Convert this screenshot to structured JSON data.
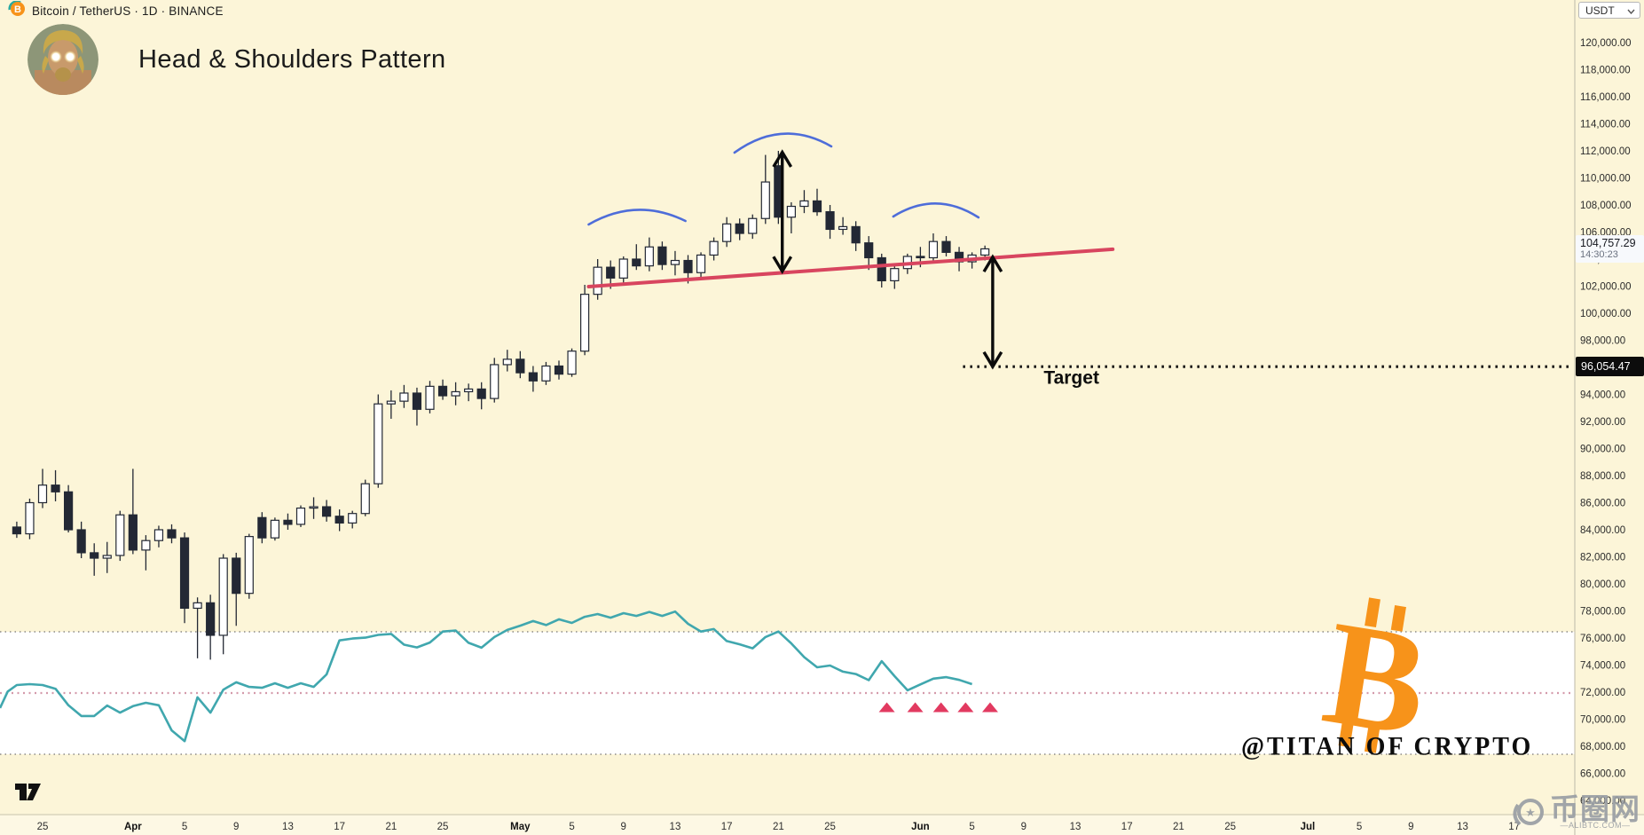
{
  "header": {
    "symbol_text": "Bitcoin / TetherUS · 1D · BINANCE",
    "title": "Head & Shoulders Pattern"
  },
  "price_scale": {
    "currency": "USDT"
  },
  "badges": {
    "last_price": "104,757.29",
    "last_time": "14:30:23",
    "target_price": "96,054.47"
  },
  "watermark": {
    "handle": "@TITAN OF CRYPTO"
  },
  "site_watermark": {
    "name": "币圈网",
    "domain": "—ALIBTC.COM—"
  },
  "colors": {
    "background": "#FCF5D8",
    "candle_down": "#232834",
    "candle_up_fill": "#FFFFFF",
    "neckline": "#D8455F",
    "arc_blue": "#4565D9",
    "rsi_teal": "#40A7AE",
    "rsi_mid_dotted": "#D49AAB",
    "rsi_band_dotted": "#6f6f6f",
    "triangle": "#E23A60",
    "bitcoin_orange": "#F7931A",
    "badge_black": "#0C0C0C",
    "axis_text": "#2b2b2b"
  },
  "chart_data": {
    "type": "candlestick",
    "title": "Bitcoin / TetherUS 1D BINANCE — Head & Shoulders Pattern",
    "start_date": "Mar 23",
    "last_price": 104757.29,
    "target_price": 96054.47,
    "price_axis": {
      "min": 64000,
      "max": 120000,
      "step": 2000,
      "labels": [
        [
          120000,
          "120,000.00"
        ],
        [
          118000,
          "118,000.00"
        ],
        [
          116000,
          "116,000.00"
        ],
        [
          114000,
          "114,000.00"
        ],
        [
          112000,
          "112,000.00"
        ],
        [
          110000,
          "110,000.00"
        ],
        [
          108000,
          "108,000.00"
        ],
        [
          106000,
          "106,000.00"
        ],
        [
          104000,
          "104,000.00"
        ],
        [
          102000,
          "102,000.00"
        ],
        [
          100000,
          "100,000.00"
        ],
        [
          98000,
          "98,000.00"
        ],
        [
          96000,
          "96,000.00"
        ],
        [
          94000,
          "94,000.00"
        ],
        [
          92000,
          "92,000.00"
        ],
        [
          90000,
          "90,000.00"
        ],
        [
          88000,
          "88,000.00"
        ],
        [
          86000,
          "86,000.00"
        ],
        [
          84000,
          "84,000.00"
        ],
        [
          82000,
          "82,000.00"
        ],
        [
          80000,
          "80,000.00"
        ],
        [
          78000,
          "78,000.00"
        ],
        [
          76000,
          "76,000.00"
        ],
        [
          74000,
          "74,000.00"
        ],
        [
          72000,
          "72,000.00"
        ],
        [
          70000,
          "70,000.00"
        ],
        [
          68000,
          "68,000.00"
        ],
        [
          66000,
          "66,000.00"
        ],
        [
          64000,
          "64,000.00"
        ]
      ]
    },
    "time_axis": {
      "labels": [
        {
          "t": "25",
          "d": 2
        },
        {
          "t": "Apr",
          "d": 9,
          "bold": true
        },
        {
          "t": "5",
          "d": 13
        },
        {
          "t": "9",
          "d": 17
        },
        {
          "t": "13",
          "d": 21
        },
        {
          "t": "17",
          "d": 25
        },
        {
          "t": "21",
          "d": 29
        },
        {
          "t": "25",
          "d": 33
        },
        {
          "t": "May",
          "d": 39,
          "bold": true
        },
        {
          "t": "5",
          "d": 43
        },
        {
          "t": "9",
          "d": 47
        },
        {
          "t": "13",
          "d": 51
        },
        {
          "t": "17",
          "d": 55
        },
        {
          "t": "21",
          "d": 59
        },
        {
          "t": "25",
          "d": 63
        },
        {
          "t": "Jun",
          "d": 70,
          "bold": true
        },
        {
          "t": "5",
          "d": 74
        },
        {
          "t": "9",
          "d": 78
        },
        {
          "t": "13",
          "d": 82
        },
        {
          "t": "17",
          "d": 86
        },
        {
          "t": "21",
          "d": 90
        },
        {
          "t": "25",
          "d": 94
        },
        {
          "t": "Jul",
          "d": 100,
          "bold": true
        },
        {
          "t": "5",
          "d": 104
        },
        {
          "t": "9",
          "d": 108
        },
        {
          "t": "13",
          "d": 112
        },
        {
          "t": "17",
          "d": 116
        }
      ]
    },
    "candles": [
      [
        84200,
        84600,
        83400,
        83700
      ],
      [
        83700,
        86300,
        83300,
        86000
      ],
      [
        86000,
        88500,
        85600,
        87300
      ],
      [
        87300,
        88400,
        86100,
        86800
      ],
      [
        86800,
        87300,
        83800,
        84000
      ],
      [
        84000,
        84600,
        81900,
        82300
      ],
      [
        82300,
        83000,
        80600,
        81900
      ],
      [
        81900,
        83100,
        80800,
        82100
      ],
      [
        82100,
        85400,
        81700,
        85100
      ],
      [
        85100,
        88500,
        82200,
        82500
      ],
      [
        82500,
        83600,
        81000,
        83200
      ],
      [
        83200,
        84300,
        82700,
        84000
      ],
      [
        84000,
        84400,
        83000,
        83400
      ],
      [
        83400,
        83800,
        77100,
        78200
      ],
      [
        78200,
        79000,
        74500,
        78600
      ],
      [
        78600,
        79200,
        74400,
        76200
      ],
      [
        76200,
        82200,
        74800,
        81900
      ],
      [
        81900,
        82300,
        76900,
        79300
      ],
      [
        79300,
        83700,
        78900,
        83500
      ],
      [
        84900,
        85300,
        83000,
        83400
      ],
      [
        83400,
        84900,
        83200,
        84700
      ],
      [
        84700,
        85200,
        84000,
        84400
      ],
      [
        84400,
        85800,
        84200,
        85600
      ],
      [
        85600,
        86400,
        84800,
        85700
      ],
      [
        85700,
        86200,
        84600,
        85000
      ],
      [
        85000,
        85500,
        83900,
        84500
      ],
      [
        84500,
        85400,
        84100,
        85200
      ],
      [
        85200,
        87700,
        85000,
        87400
      ],
      [
        87400,
        94000,
        87100,
        93300
      ],
      [
        93300,
        94300,
        92200,
        93500
      ],
      [
        93500,
        94700,
        93000,
        94100
      ],
      [
        94100,
        94500,
        91700,
        92900
      ],
      [
        92900,
        95000,
        92600,
        94600
      ],
      [
        94600,
        95100,
        93600,
        93900
      ],
      [
        93900,
        94900,
        93200,
        94200
      ],
      [
        94200,
        94800,
        93500,
        94400
      ],
      [
        94400,
        94900,
        92900,
        93700
      ],
      [
        93700,
        96700,
        93400,
        96200
      ],
      [
        96200,
        97300,
        95700,
        96600
      ],
      [
        96600,
        97200,
        95200,
        95600
      ],
      [
        95600,
        96100,
        94200,
        95000
      ],
      [
        95000,
        96400,
        94700,
        96100
      ],
      [
        96100,
        96500,
        95100,
        95500
      ],
      [
        95500,
        97400,
        95300,
        97200
      ],
      [
        97200,
        102100,
        96900,
        101400
      ],
      [
        101400,
        104000,
        101000,
        103400
      ],
      [
        103400,
        103900,
        101800,
        102600
      ],
      [
        102600,
        104200,
        102200,
        104000
      ],
      [
        104000,
        105100,
        103200,
        103500
      ],
      [
        103500,
        105600,
        103100,
        104900
      ],
      [
        104900,
        105300,
        103200,
        103600
      ],
      [
        103600,
        104600,
        102800,
        103900
      ],
      [
        103900,
        104300,
        102200,
        103000
      ],
      [
        103000,
        104500,
        102600,
        104300
      ],
      [
        104300,
        105600,
        103900,
        105300
      ],
      [
        105300,
        107100,
        104900,
        106600
      ],
      [
        106600,
        107000,
        105400,
        105900
      ],
      [
        105900,
        107300,
        105500,
        107000
      ],
      [
        107000,
        111700,
        106600,
        109700
      ],
      [
        110900,
        112000,
        106600,
        107100
      ],
      [
        107100,
        108200,
        105900,
        107900
      ],
      [
        107900,
        109100,
        107400,
        108300
      ],
      [
        108300,
        109200,
        107200,
        107500
      ],
      [
        107500,
        108000,
        105500,
        106200
      ],
      [
        106200,
        107100,
        105800,
        106400
      ],
      [
        106400,
        106800,
        104600,
        105200
      ],
      [
        105200,
        105700,
        103200,
        104100
      ],
      [
        104100,
        104400,
        101900,
        102400
      ],
      [
        102400,
        103600,
        101800,
        103300
      ],
      [
        103300,
        104400,
        102900,
        104200
      ],
      [
        104200,
        104900,
        103400,
        104100
      ],
      [
        104100,
        105900,
        103800,
        105300
      ],
      [
        105300,
        105700,
        104200,
        104500
      ],
      [
        104500,
        104900,
        103100,
        103800
      ],
      [
        103800,
        104500,
        103300,
        104300
      ],
      [
        104300,
        105000,
        103900,
        104757
      ]
    ],
    "rsi": {
      "note": "overlaid oscillator, levels 70/50/30",
      "levels": {
        "overbought": 70,
        "midline": 50,
        "oversold": 30
      },
      "lead_points": [
        [
          -1.3,
          45.1
        ],
        [
          -0.7,
          50.5
        ]
      ],
      "values": [
        52.6,
        52.9,
        52.6,
        51.4,
        46.0,
        42.5,
        42.5,
        45.9,
        43.6,
        45.7,
        46.8,
        46.0,
        37.8,
        34.3,
        48.6,
        43.6,
        51.1,
        53.5,
        52.0,
        51.7,
        53.2,
        51.7,
        53.2,
        52.0,
        56.1,
        67.2,
        67.8,
        68.1,
        69.0,
        69.3,
        65.8,
        64.9,
        66.5,
        70.1,
        70.4,
        66.4,
        64.8,
        68.3,
        70.6,
        72.0,
        73.5,
        72.2,
        74.1,
        72.9,
        74.9,
        75.8,
        74.6,
        76.1,
        75.2,
        76.5,
        75.2,
        76.6,
        72.6,
        70.1,
        70.9,
        67.0,
        65.9,
        64.6,
        68.3,
        70.1,
        66.2,
        61.7,
        58.4,
        59.0,
        57.0,
        56.2,
        54.2,
        60.4,
        55.5,
        50.9,
        52.8,
        54.7,
        55.2,
        54.3,
        52.9
      ]
    },
    "annotations": {
      "arcs": [
        {
          "name": "left-shoulder",
          "d1": 44.3,
          "p1": 106560,
          "dc": 48.0,
          "pc": 108590,
          "d2": 51.8,
          "p2": 106820
        },
        {
          "name": "head",
          "d1": 55.6,
          "p1": 111870,
          "dc": 59.3,
          "pc": 114430,
          "d2": 63.1,
          "p2": 112330
        },
        {
          "name": "right-shoulder",
          "d1": 67.9,
          "p1": 107150,
          "dc": 71.2,
          "pc": 109110,
          "d2": 74.5,
          "p2": 107080
        }
      ],
      "neckline": {
        "d1": 44.3,
        "p1": 101970,
        "d2": 84.9,
        "p2": 104730
      },
      "head_arrow": {
        "day": 59.3,
        "from_price": 111900,
        "to_price": 103100
      },
      "target_arrow": {
        "day": 75.6,
        "from_price": 104150,
        "to_price": 96054.47
      },
      "target_line": {
        "price": 96054.47,
        "start_day": 73.3
      },
      "target_label": {
        "text": "Target",
        "day": 81.7,
        "price": 94800
      },
      "triangles": {
        "days": [
          67.4,
          69.6,
          71.6,
          73.5,
          75.4
        ],
        "rsi_value": 45.2
      }
    }
  }
}
